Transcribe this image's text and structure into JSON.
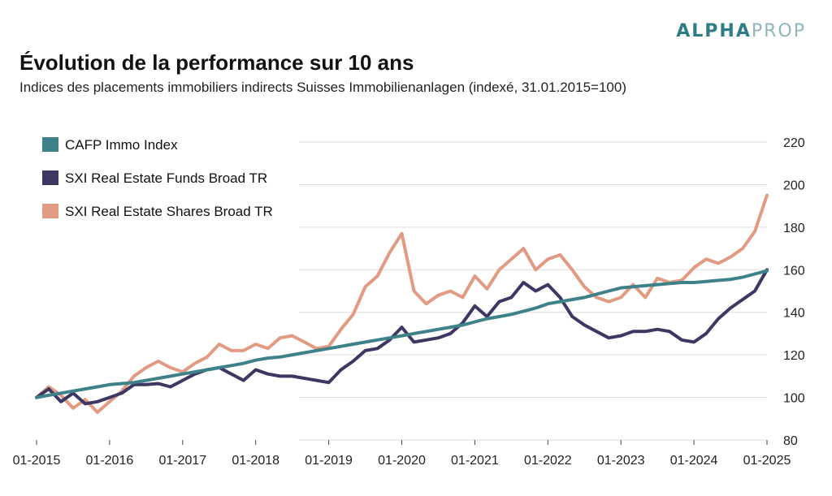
{
  "brand": {
    "part1": "ALPHA",
    "part2": "PROP"
  },
  "title": "Évolution de la performance sur 10 ans",
  "subtitle": "Indices des placements immobiliers indirects Suisses Immobilienanlagen (indexé, 31.01.2015=100)",
  "chart_data": {
    "type": "line",
    "x": [
      "2015-01",
      "2015-03",
      "2015-05",
      "2015-07",
      "2015-09",
      "2015-11",
      "2016-01",
      "2016-03",
      "2016-05",
      "2016-07",
      "2016-09",
      "2016-11",
      "2017-01",
      "2017-03",
      "2017-05",
      "2017-07",
      "2017-09",
      "2017-11",
      "2018-01",
      "2018-03",
      "2018-05",
      "2018-07",
      "2018-09",
      "2018-11",
      "2019-01",
      "2019-03",
      "2019-05",
      "2019-07",
      "2019-09",
      "2019-11",
      "2020-01",
      "2020-03",
      "2020-05",
      "2020-07",
      "2020-09",
      "2020-11",
      "2021-01",
      "2021-03",
      "2021-05",
      "2021-07",
      "2021-09",
      "2021-11",
      "2022-01",
      "2022-03",
      "2022-05",
      "2022-07",
      "2022-09",
      "2022-11",
      "2023-01",
      "2023-03",
      "2023-05",
      "2023-07",
      "2023-09",
      "2023-11",
      "2024-01",
      "2024-03",
      "2024-05",
      "2024-07",
      "2024-09",
      "2024-11",
      "2025-01"
    ],
    "x_tick_labels": [
      "01-2015",
      "01-2016",
      "01-2017",
      "01-2018",
      "01-2019",
      "01-2020",
      "01-2021",
      "01-2022",
      "01-2023",
      "01-2024",
      "01-2025"
    ],
    "ylim": [
      80,
      220
    ],
    "y_ticks": [
      80,
      100,
      120,
      140,
      160,
      180,
      200,
      220
    ],
    "y_axis_side": "right",
    "grid": "horizontal",
    "legend_placement": "top-left",
    "series": [
      {
        "name": "CAFP Immo Index",
        "color": "#3e8289",
        "values": [
          100,
          101,
          102,
          103,
          104,
          105,
          106,
          106.5,
          107,
          108,
          109,
          110,
          111,
          112,
          113,
          114,
          115,
          116,
          117.5,
          118.5,
          119,
          120,
          121,
          122,
          123,
          124,
          125,
          126,
          127,
          128,
          129,
          130,
          131,
          132,
          133,
          134,
          135.5,
          137,
          138,
          139,
          140.5,
          142,
          144,
          145,
          146,
          147,
          148.5,
          150,
          151.5,
          152,
          152.5,
          153,
          153.5,
          154,
          154,
          154.5,
          155,
          155.5,
          156.5,
          158,
          159.5
        ]
      },
      {
        "name": "SXI Real Estate Funds Broad TR",
        "color": "#3c3763",
        "values": [
          100,
          104,
          98,
          102,
          97,
          98,
          100,
          102,
          106,
          106,
          106.5,
          105,
          108,
          111,
          113,
          114,
          111,
          108,
          113,
          111,
          110,
          110,
          109,
          108,
          107,
          113,
          117,
          122,
          123,
          127,
          133,
          126,
          127,
          128,
          130,
          135,
          143,
          138,
          145,
          147,
          154,
          150,
          153,
          147,
          138,
          134,
          131,
          128,
          129,
          131,
          131,
          132,
          131,
          127,
          126,
          130,
          137,
          142,
          146,
          150,
          160
        ]
      },
      {
        "name": "SXI Real Estate Shares Broad TR",
        "color": "#e29a82",
        "values": [
          100,
          105,
          101,
          95,
          99,
          93,
          98,
          103,
          110,
          114,
          117,
          114,
          112,
          116,
          119,
          125,
          122,
          122,
          125,
          123,
          128,
          129,
          126,
          123,
          124,
          132,
          139,
          152,
          157,
          168,
          177,
          150,
          144,
          148,
          150,
          147,
          157,
          151,
          160,
          165,
          170,
          160,
          165,
          167,
          160,
          152,
          147,
          145,
          147,
          153,
          147,
          156,
          154,
          155,
          161,
          165,
          163,
          166,
          170,
          178,
          195
        ]
      }
    ]
  }
}
